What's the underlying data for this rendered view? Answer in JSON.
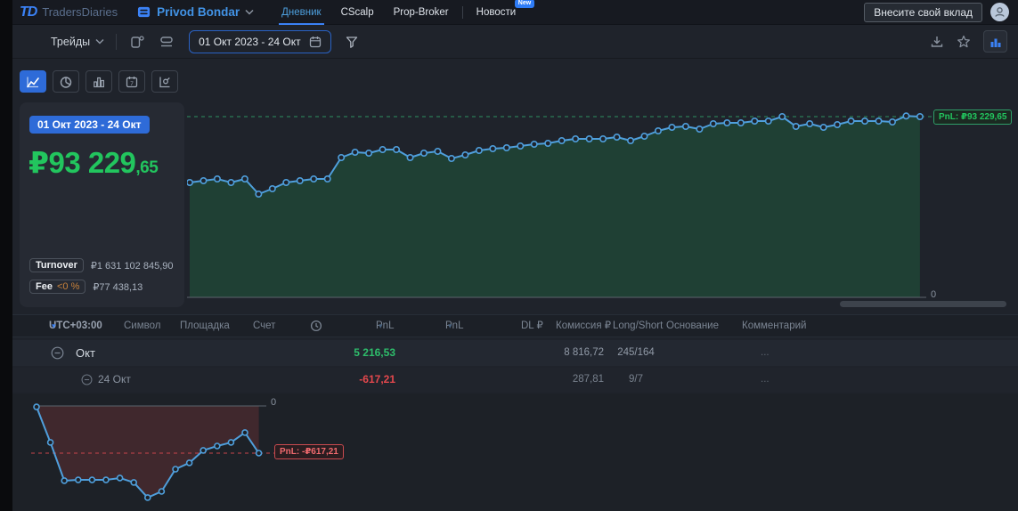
{
  "navbar": {
    "logo": "TD",
    "brand": "TradersDiaries",
    "workspace": "Privod Bondar",
    "tabs": [
      {
        "label": "Дневник",
        "active": true
      },
      {
        "label": "CScalp"
      },
      {
        "label": "Prop-Broker"
      },
      {
        "label": "Новости",
        "badge": "New"
      }
    ],
    "contribute_button": "Внесите свой вклад"
  },
  "toolbar": {
    "mode_label": "Трейды",
    "date_range": "01 Окт 2023 - 24 Окт"
  },
  "summary": {
    "period_badge": "01 Окт 2023 - 24 Окт",
    "pnl_main": "₽93 229",
    "pnl_decimal": ",65",
    "turnover_label": "Turnover",
    "turnover_value": "₽1 631 102 845,90",
    "fee_label": "Fee",
    "fee_percent": "<0 %",
    "fee_value": "₽77 438,13"
  },
  "table": {
    "timezone": "UTC+03:00",
    "columns": [
      "Символ",
      "Площадка",
      "Счет",
      "PnL ₽",
      "PnL %",
      "DL ₽",
      "Комиссия ₽",
      "Long/Short",
      "Основание",
      "Комментарий"
    ],
    "rows": [
      {
        "period": "Окт",
        "pnl": "5 216,53",
        "commission": "8 816,72",
        "long_short": "245/164",
        "more": "..."
      },
      {
        "period": "24 Окт",
        "pnl": "-617,21",
        "commission": "287,81",
        "long_short": "9/7",
        "more": "..."
      }
    ]
  },
  "icons": {
    "sort_arrow": "▾"
  },
  "colors": {
    "accent_blue": "#2e6bd8",
    "green": "#22c55e",
    "red": "#e5484d",
    "amber": "#c8823b",
    "chart_line": "#4f9fdc"
  },
  "chart_data": [
    {
      "id": "main",
      "type": "area",
      "unit": "₽",
      "final_value": 93229.65,
      "label": "PnL: ₽93 229,65",
      "zero_label": "0",
      "line_color": "#4f9fdc",
      "fill_color": "rgba(34,197,94,0.18)",
      "ref_line_color": "#2f9e68",
      "values": [
        59245,
        60163,
        61082,
        59245,
        61082,
        53275,
        56031,
        59245,
        60163,
        61082,
        61082,
        72105,
        74861,
        74401,
        76238,
        76238,
        72105,
        74401,
        75320,
        71645,
        73482,
        75779,
        76697,
        77156,
        78075,
        78993,
        79452,
        80830,
        81749,
        81749,
        81749,
        82667,
        80830,
        83126,
        85882,
        87719,
        88178,
        86800,
        89556,
        90015,
        90015,
        90934,
        90934,
        93230,
        88178,
        89556,
        87719,
        89097,
        90934,
        90934,
        90934,
        90474,
        93560,
        93229.65
      ]
    },
    {
      "id": "day",
      "type": "area",
      "unit": "₽",
      "final_value": -617.21,
      "label": "PnL: -₽617,21",
      "zero_label": "0",
      "line_color": "#4f9fdc",
      "fill_color": "rgba(229,72,77,0.18)",
      "ref_line_color": "#d9494f",
      "values": [
        -12,
        -477,
        -978,
        -967,
        -967,
        -967,
        -943,
        -1001,
        -1199,
        -1118,
        -827,
        -745,
        -582,
        -524,
        -477,
        -349,
        -617.21
      ]
    }
  ]
}
